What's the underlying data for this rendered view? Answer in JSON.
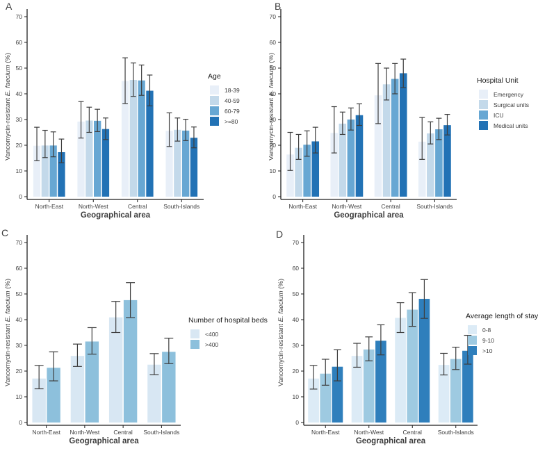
{
  "figure": {
    "ylabel_prefix": "Vancomycin-resistant ",
    "ylabel_italic": "E. faecium",
    "ylabel_suffix": " (%)",
    "xlabel": "Geographical area",
    "categories": [
      "North-East",
      "North-West",
      "Central",
      "South-Islands"
    ],
    "y_ticks": [
      0,
      10,
      20,
      30,
      40,
      50,
      60,
      70
    ]
  },
  "chart_data": [
    {
      "letter": "A",
      "type": "bar",
      "title": "",
      "xlabel": "Geographical area",
      "ylabel": "Vancomycin-resistant E. faecium (%)",
      "ylim": [
        0,
        70
      ],
      "y_ticks": [
        0,
        10,
        20,
        30,
        40,
        50,
        60,
        70
      ],
      "categories": [
        "North-East",
        "North-West",
        "Central",
        "South-Islands"
      ],
      "legend_title": "Age",
      "legend_position": "right",
      "series": [
        {
          "name": "18-39",
          "color": "#e8eff8",
          "values": [
            19.8,
            29.2,
            45.0,
            25.6
          ],
          "err_low": [
            14.0,
            22.8,
            36.2,
            19.5
          ],
          "err_high": [
            27.0,
            37.0,
            54.0,
            32.6
          ]
        },
        {
          "name": "40-59",
          "color": "#c3d9ea",
          "values": [
            19.9,
            29.6,
            45.4,
            26.0
          ],
          "err_low": [
            15.2,
            25.0,
            39.0,
            21.6
          ],
          "err_high": [
            25.8,
            34.8,
            52.0,
            30.6
          ]
        },
        {
          "name": "60-79",
          "color": "#67a7d3",
          "values": [
            19.9,
            29.5,
            45.2,
            25.7
          ],
          "err_low": [
            15.5,
            25.3,
            39.4,
            21.8
          ],
          "err_high": [
            25.2,
            34.0,
            51.2,
            30.1
          ]
        },
        {
          "name": ">=80",
          "color": "#2272b5",
          "values": [
            17.3,
            26.3,
            41.2,
            22.9
          ],
          "err_low": [
            13.2,
            22.2,
            35.3,
            19.0
          ],
          "err_high": [
            22.4,
            30.6,
            47.3,
            27.1
          ]
        }
      ]
    },
    {
      "letter": "B",
      "type": "bar",
      "title": "",
      "xlabel": "Geographical area",
      "ylabel": "Vancomycin-resistant E. faecium (%)",
      "ylim": [
        0,
        70
      ],
      "y_ticks": [
        0,
        10,
        20,
        30,
        40,
        50,
        60,
        70
      ],
      "categories": [
        "North-East",
        "North-West",
        "Central",
        "South-Islands"
      ],
      "legend_title": "Hospital Unit",
      "legend_position": "right",
      "series": [
        {
          "name": "Emergency",
          "color": "#e8eff8",
          "values": [
            16.4,
            24.8,
            39.4,
            21.4
          ],
          "err_low": [
            10.2,
            17.0,
            28.4,
            14.5
          ],
          "err_high": [
            25.0,
            35.0,
            51.8,
            30.8
          ]
        },
        {
          "name": "Surgical units",
          "color": "#c3d9ea",
          "values": [
            19.0,
            28.4,
            43.7,
            24.6
          ],
          "err_low": [
            14.5,
            24.2,
            37.6,
            20.5
          ],
          "err_high": [
            24.2,
            32.9,
            50.0,
            29.1
          ]
        },
        {
          "name": "ICU",
          "color": "#67a7d3",
          "values": [
            20.2,
            30.0,
            45.8,
            26.2
          ],
          "err_low": [
            15.7,
            25.9,
            40.0,
            22.2
          ],
          "err_high": [
            25.6,
            34.5,
            51.8,
            30.5
          ]
        },
        {
          "name": "Medical units",
          "color": "#2272b5",
          "values": [
            21.5,
            31.7,
            48.0,
            27.8
          ],
          "err_low": [
            17.0,
            27.7,
            42.4,
            24.0
          ],
          "err_high": [
            27.0,
            36.1,
            53.5,
            32.0
          ]
        }
      ]
    },
    {
      "letter": "C",
      "type": "bar",
      "title": "",
      "xlabel": "Geographical area",
      "ylabel": "Vancomycin-resistant E. faecium (%)",
      "ylim": [
        0,
        70
      ],
      "y_ticks": [
        0,
        10,
        20,
        30,
        40,
        50,
        60,
        70
      ],
      "categories": [
        "North-East",
        "North-West",
        "Central",
        "South-Islands"
      ],
      "legend_title": "Number of hospital beds",
      "legend_position": "right",
      "series": [
        {
          "name": "<400",
          "color": "#d8e7f3",
          "values": [
            17.1,
            25.9,
            40.9,
            22.5
          ],
          "err_low": [
            13.1,
            21.8,
            35.0,
            18.6
          ],
          "err_high": [
            22.2,
            30.5,
            47.1,
            26.8
          ]
        },
        {
          "name": ">400",
          "color": "#8dc0dc",
          "values": [
            21.3,
            31.5,
            47.6,
            27.5
          ],
          "err_low": [
            16.2,
            26.6,
            40.8,
            22.9
          ],
          "err_high": [
            27.5,
            36.9,
            54.4,
            32.8
          ]
        }
      ]
    },
    {
      "letter": "D",
      "type": "bar",
      "title": "",
      "xlabel": "Geographical area",
      "ylabel": "Vancomycin-resistant E. faecium (%)",
      "ylim": [
        0,
        70
      ],
      "y_ticks": [
        0,
        10,
        20,
        30,
        40,
        50,
        60,
        70
      ],
      "categories": [
        "North-East",
        "North-West",
        "Central",
        "South-Islands"
      ],
      "legend_title": "Average length of stay",
      "legend_position": "right",
      "series": [
        {
          "name": "0-8",
          "color": "#dcebf6",
          "values": [
            17.1,
            25.9,
            40.7,
            22.4
          ],
          "err_low": [
            13.0,
            21.5,
            35.0,
            18.5
          ],
          "err_high": [
            22.2,
            30.8,
            46.6,
            26.9
          ]
        },
        {
          "name": "9-10",
          "color": "#9ecae1",
          "values": [
            19.0,
            28.4,
            43.9,
            24.7
          ],
          "err_low": [
            14.5,
            24.0,
            37.4,
            20.6
          ],
          "err_high": [
            24.6,
            33.3,
            50.5,
            29.3
          ]
        },
        {
          "name": ">10",
          "color": "#2f7fbc",
          "values": [
            21.7,
            31.8,
            48.1,
            27.9
          ],
          "err_low": [
            16.2,
            26.3,
            40.5,
            22.7
          ],
          "err_high": [
            28.3,
            38.0,
            55.6,
            33.9
          ]
        }
      ]
    }
  ]
}
